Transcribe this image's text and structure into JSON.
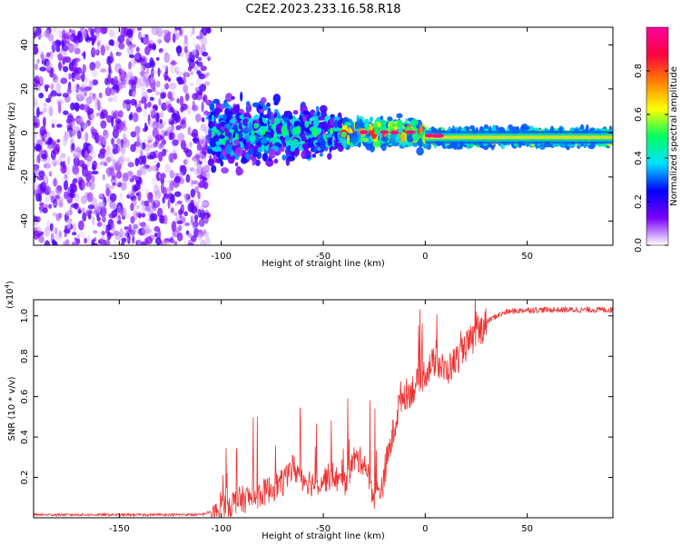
{
  "figure": {
    "title": "C2E2.2023.233.16.58.R18"
  },
  "chart_data": [
    {
      "type": "heatmap",
      "xlabel": "Height of straight line (km)",
      "ylabel": "Frequency (Hz)",
      "xlim": [
        -192,
        92
      ],
      "ylim": [
        -51,
        48
      ],
      "x_ticks": [
        -150,
        -100,
        -50,
        0,
        50
      ],
      "x_tick_labels": [
        "-150",
        "-100",
        "-50",
        "0",
        "50"
      ],
      "y_ticks": [
        -40,
        -20,
        0,
        20,
        40
      ],
      "y_tick_labels": [
        "-40",
        "-20",
        "0",
        "20",
        "40"
      ],
      "colorbar": {
        "label": "Normalized spectral amplitude",
        "range": [
          0,
          1
        ],
        "ticks": [
          0.0,
          0.2,
          0.4,
          0.6,
          0.8
        ],
        "tick_labels": [
          "0.0",
          "0.2",
          "0.4",
          "0.6",
          "0.8"
        ],
        "colormap": [
          "#ffffff",
          "#7a00ff",
          "#0000ff",
          "#00e0ff",
          "#00ff60",
          "#ffff00",
          "#ff8000",
          "#ff0040",
          "#ff00a0"
        ]
      },
      "regions": [
        {
          "x_range": [
            -192,
            -106
          ],
          "freq_center": 0,
          "freq_spread": 50,
          "amplitude": [
            0.0,
            0.2
          ]
        },
        {
          "x_range": [
            -106,
            -40
          ],
          "freq_center": 0,
          "freq_spread": 14,
          "amplitude": [
            0.1,
            0.55
          ]
        },
        {
          "x_range": [
            -40,
            0
          ],
          "freq_center": 0,
          "freq_spread": 5,
          "amplitude": [
            0.3,
            1.0
          ]
        },
        {
          "x_range": [
            0,
            92
          ],
          "freq_center": -2,
          "freq_spread": 3,
          "amplitude": [
            0.3,
            0.9
          ]
        }
      ],
      "grid": false
    },
    {
      "type": "line",
      "xlabel": "Height of straight line (km)",
      "ylabel": "SNR (10 * v/v)",
      "y_multiplier_label": "(x10",
      "y_multiplier_exp": "4",
      "y_multiplier_close": ")",
      "xlim": [
        -192,
        92
      ],
      "ylim": [
        0,
        1.08
      ],
      "x_ticks": [
        -150,
        -100,
        -50,
        0,
        50
      ],
      "x_tick_labels": [
        "-150",
        "-100",
        "-50",
        "0",
        "50"
      ],
      "y_ticks": [
        0.2,
        0.4,
        0.6,
        0.8,
        1.0
      ],
      "y_tick_labels": [
        "0.2",
        "0.4",
        "0.6",
        "0.8",
        "1.0"
      ],
      "color": "#ee3333",
      "series": [
        {
          "x": [
            -192,
            -150,
            -110,
            -105,
            -100,
            -95,
            -90,
            -85,
            -80,
            -75,
            -70,
            -65,
            -60,
            -55,
            -50,
            -45,
            -40,
            -35,
            -30,
            -25,
            -20,
            -15,
            -12,
            -8,
            -5,
            0,
            5,
            10,
            15,
            20,
            25,
            30,
            35,
            40,
            50,
            60,
            70,
            80,
            92
          ],
          "values": [
            0.015,
            0.015,
            0.015,
            0.03,
            0.1,
            0.12,
            0.14,
            0.15,
            0.17,
            0.2,
            0.22,
            0.3,
            0.25,
            0.22,
            0.24,
            0.26,
            0.2,
            0.34,
            0.33,
            0.15,
            0.23,
            0.45,
            0.6,
            0.62,
            0.65,
            0.72,
            0.78,
            0.72,
            0.78,
            0.85,
            0.9,
            0.97,
            1.0,
            1.02,
            1.03,
            1.03,
            1.03,
            1.03,
            1.03
          ]
        }
      ],
      "grid": false
    }
  ]
}
